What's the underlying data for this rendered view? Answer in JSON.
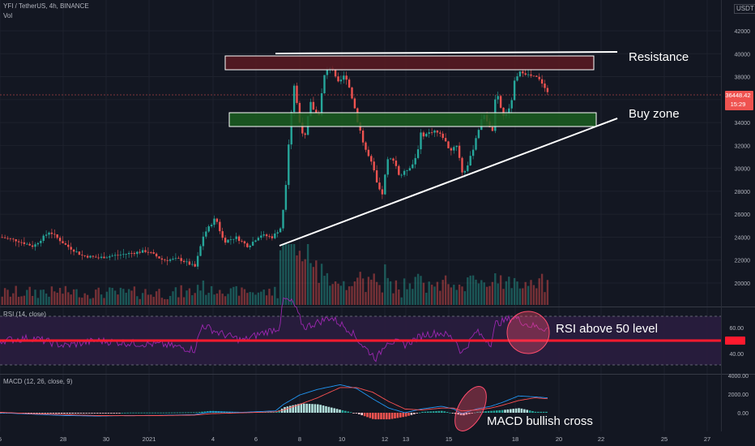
{
  "header": {
    "symbol_title": "YFI / TetherUS, 4h, BINANCE",
    "volume_label": "Vol",
    "currency_badge": "USDT",
    "rsi_label": "RSI (14, close)",
    "macd_label": "MACD (12, 26, close, 9)"
  },
  "price_tag": {
    "value": "36448.42",
    "countdown": "15:29"
  },
  "annotations": {
    "resistance": "Resistance",
    "buy_zone": "Buy zone",
    "rsi_note": "RSI above 50 level",
    "macd_note": "MACD bullish cross"
  },
  "colors": {
    "background": "#131722",
    "up_candle": "#26a69a",
    "down_candle": "#ef5350",
    "resistance_zone": "#5c1a22",
    "buy_zone": "#1b5e20",
    "rsi_line": "#9c27b0",
    "rsi_band": "#2a1d3f",
    "rsi_50_line": "#ff1a2e",
    "macd_line": "#2196f3",
    "signal_line": "#ff5252",
    "annotation": "#ffffff"
  },
  "chart_data": [
    {
      "type": "candlestick",
      "title": "YFI / TetherUS, 4h, BINANCE",
      "x_ticks": [
        "5",
        "28",
        "30",
        "2021",
        "4",
        "6",
        "8",
        "10",
        "12",
        "13",
        "15",
        "18",
        "20",
        "22",
        "25",
        "27"
      ],
      "y_ticks": [
        20000,
        22000,
        24000,
        26000,
        28000,
        30000,
        32000,
        34000,
        36000,
        38000,
        40000,
        42000
      ],
      "ylim": [
        17600,
        44400
      ],
      "last_price": 36448.42,
      "close_path": [
        [
          0,
          24000
        ],
        [
          20,
          23700
        ],
        [
          40,
          23200
        ],
        [
          60,
          24500
        ],
        [
          80,
          23300
        ],
        [
          100,
          22400
        ],
        [
          120,
          22200
        ],
        [
          140,
          22400
        ],
        [
          160,
          22600
        ],
        [
          180,
          22800
        ],
        [
          200,
          22000
        ],
        [
          220,
          22100
        ],
        [
          240,
          21400
        ],
        [
          250,
          24200
        ],
        [
          265,
          25700
        ],
        [
          275,
          23600
        ],
        [
          290,
          24000
        ],
        [
          305,
          23200
        ],
        [
          320,
          24200
        ],
        [
          335,
          24000
        ],
        [
          345,
          24800
        ],
        [
          350,
          27500
        ],
        [
          355,
          33200
        ],
        [
          362,
          37400
        ],
        [
          368,
          34200
        ],
        [
          375,
          32600
        ],
        [
          382,
          35600
        ],
        [
          392,
          34500
        ],
        [
          400,
          38300
        ],
        [
          408,
          39000
        ],
        [
          415,
          37300
        ],
        [
          425,
          38200
        ],
        [
          432,
          36600
        ],
        [
          440,
          34300
        ],
        [
          448,
          32000
        ],
        [
          458,
          30300
        ],
        [
          465,
          28300
        ],
        [
          470,
          27500
        ],
        [
          478,
          30800
        ],
        [
          485,
          30800
        ],
        [
          492,
          29300
        ],
        [
          500,
          29800
        ],
        [
          510,
          30500
        ],
        [
          518,
          32800
        ],
        [
          525,
          33000
        ],
        [
          535,
          33300
        ],
        [
          545,
          32800
        ],
        [
          555,
          31500
        ],
        [
          562,
          32200
        ],
        [
          570,
          29500
        ],
        [
          578,
          30500
        ],
        [
          588,
          33200
        ],
        [
          597,
          34800
        ],
        [
          606,
          32900
        ],
        [
          612,
          36600
        ],
        [
          620,
          34500
        ],
        [
          628,
          35200
        ],
        [
          635,
          37700
        ],
        [
          642,
          38500
        ],
        [
          652,
          38100
        ],
        [
          662,
          37900
        ],
        [
          670,
          37300
        ],
        [
          676,
          36448
        ]
      ]
    },
    {
      "type": "bar",
      "title": "Vol",
      "values": "relative volume per candle; spike around the Jan 7 breakout"
    },
    {
      "type": "line",
      "title": "RSI (14, close)",
      "y_ticks": [
        40.0,
        50.0,
        60.0
      ],
      "levels": [
        30,
        50,
        70
      ],
      "ylim": [
        20,
        90
      ],
      "path": [
        [
          0,
          50
        ],
        [
          40,
          52
        ],
        [
          80,
          46
        ],
        [
          120,
          50
        ],
        [
          160,
          48
        ],
        [
          200,
          47
        ],
        [
          240,
          43
        ],
        [
          250,
          62
        ],
        [
          270,
          56
        ],
        [
          300,
          50
        ],
        [
          320,
          55
        ],
        [
          345,
          60
        ],
        [
          350,
          82
        ],
        [
          362,
          79
        ],
        [
          375,
          60
        ],
        [
          392,
          64
        ],
        [
          408,
          68
        ],
        [
          432,
          58
        ],
        [
          448,
          46
        ],
        [
          465,
          36
        ],
        [
          478,
          50
        ],
        [
          500,
          47
        ],
        [
          525,
          55
        ],
        [
          545,
          56
        ],
        [
          562,
          51
        ],
        [
          570,
          40
        ],
        [
          588,
          57
        ],
        [
          606,
          48
        ],
        [
          612,
          63
        ],
        [
          635,
          68
        ],
        [
          652,
          62
        ],
        [
          676,
          59
        ]
      ]
    },
    {
      "type": "line",
      "title": "MACD (12, 26, close, 9)",
      "y_ticks": [
        0.0,
        2000.0,
        4000.0
      ],
      "ylim": [
        -1500,
        5000
      ],
      "macd": [
        [
          0,
          0
        ],
        [
          40,
          -150
        ],
        [
          80,
          -300
        ],
        [
          120,
          -350
        ],
        [
          160,
          -300
        ],
        [
          200,
          -280
        ],
        [
          240,
          -200
        ],
        [
          260,
          100
        ],
        [
          300,
          50
        ],
        [
          340,
          200
        ],
        [
          350,
          900
        ],
        [
          370,
          1900
        ],
        [
          392,
          2500
        ],
        [
          420,
          3000
        ],
        [
          440,
          2600
        ],
        [
          460,
          1500
        ],
        [
          480,
          500
        ],
        [
          500,
          0
        ],
        [
          520,
          400
        ],
        [
          545,
          700
        ],
        [
          560,
          400
        ],
        [
          570,
          -100
        ],
        [
          588,
          400
        ],
        [
          606,
          700
        ],
        [
          620,
          1100
        ],
        [
          640,
          1800
        ],
        [
          660,
          1700
        ],
        [
          676,
          1600
        ]
      ],
      "signal": [
        [
          0,
          50
        ],
        [
          40,
          -100
        ],
        [
          80,
          -200
        ],
        [
          120,
          -300
        ],
        [
          160,
          -320
        ],
        [
          200,
          -300
        ],
        [
          240,
          -250
        ],
        [
          260,
          -100
        ],
        [
          300,
          0
        ],
        [
          340,
          100
        ],
        [
          350,
          300
        ],
        [
          370,
          900
        ],
        [
          392,
          1600
        ],
        [
          420,
          2700
        ],
        [
          440,
          2700
        ],
        [
          460,
          2200
        ],
        [
          480,
          1200
        ],
        [
          500,
          400
        ],
        [
          520,
          300
        ],
        [
          545,
          500
        ],
        [
          560,
          500
        ],
        [
          570,
          200
        ],
        [
          588,
          300
        ],
        [
          606,
          500
        ],
        [
          620,
          800
        ],
        [
          640,
          1300
        ],
        [
          660,
          1600
        ],
        [
          676,
          1500
        ]
      ]
    }
  ]
}
